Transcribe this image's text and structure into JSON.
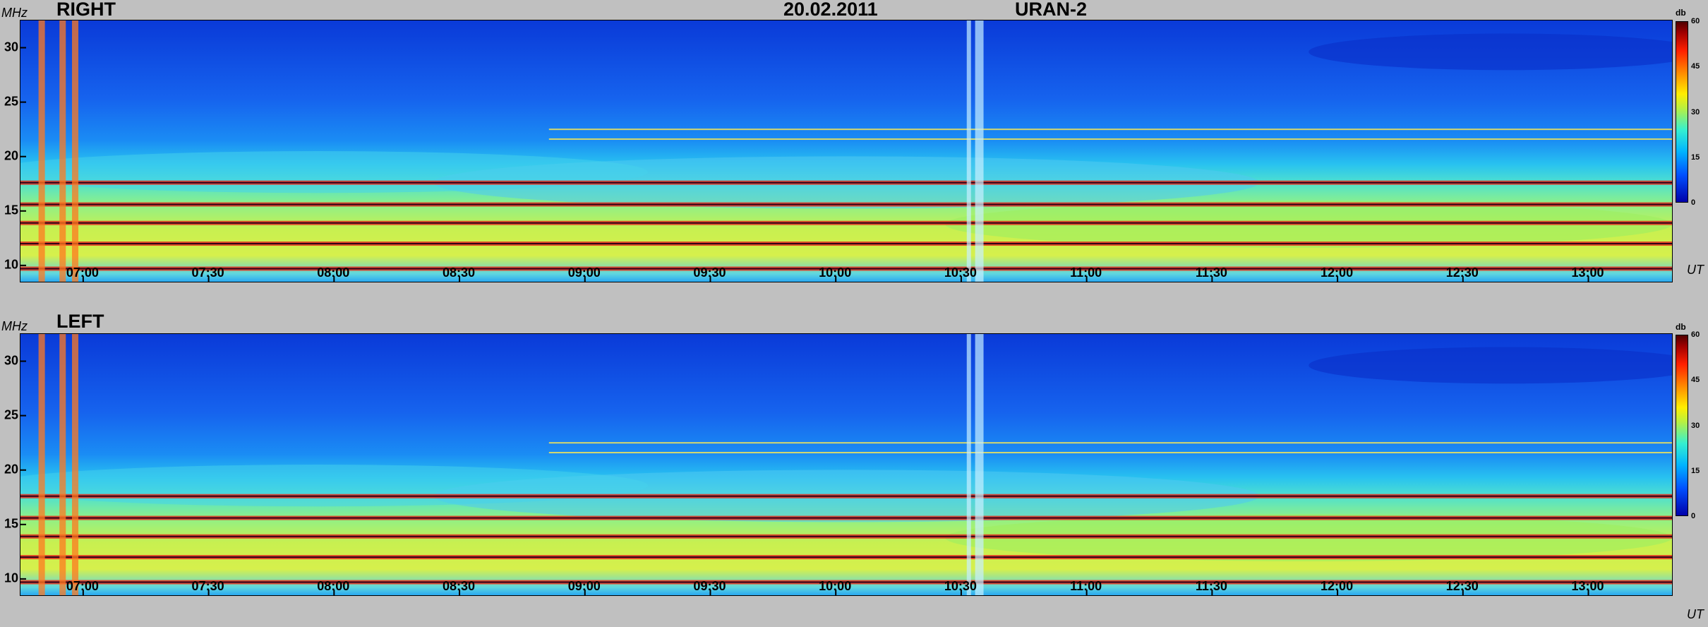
{
  "date": "20.02.2011",
  "instrument": "URAN-2",
  "panels": [
    {
      "label": "RIGHT",
      "y_unit": "MHz",
      "x_unit": "UT",
      "colorbar_unit": "db"
    },
    {
      "label": "LEFT",
      "y_unit": "MHz",
      "x_unit": "UT",
      "colorbar_unit": "db"
    }
  ],
  "chart_data": [
    {
      "type": "heatmap",
      "title": "RIGHT",
      "xlabel": "UT",
      "ylabel": "MHz",
      "x_ticks": [
        "07:00",
        "07:30",
        "08:00",
        "08:30",
        "09:00",
        "09:30",
        "10:00",
        "10:30",
        "11:00",
        "11:30",
        "12:00",
        "12:30",
        "13:00"
      ],
      "y_ticks": [
        10,
        15,
        20,
        25,
        30
      ],
      "ylim": [
        8.5,
        32.5
      ],
      "colorbar": {
        "label": "db",
        "ticks": [
          0,
          15,
          30,
          45,
          60
        ],
        "range": [
          0,
          60
        ]
      },
      "time_range": [
        "06:45",
        "13:20"
      ],
      "features": {
        "interference_bands_mhz": [
          9.7,
          12.0,
          13.9,
          15.6,
          17.6
        ],
        "broadband_bursts_ut": [
          "06:50",
          "06:55",
          "06:58",
          "10:32",
          "10:34",
          "10:35"
        ],
        "narrowband_line_mhz": [
          21.6,
          22.5
        ]
      }
    },
    {
      "type": "heatmap",
      "title": "LEFT",
      "xlabel": "UT",
      "ylabel": "MHz",
      "x_ticks": [
        "07:00",
        "07:30",
        "08:00",
        "08:30",
        "09:00",
        "09:30",
        "10:00",
        "10:30",
        "11:00",
        "11:30",
        "12:00",
        "12:30",
        "13:00"
      ],
      "y_ticks": [
        10,
        15,
        20,
        25,
        30
      ],
      "ylim": [
        8.5,
        32.5
      ],
      "colorbar": {
        "label": "db",
        "ticks": [
          0,
          15,
          30,
          45,
          60
        ],
        "range": [
          0,
          60
        ]
      },
      "time_range": [
        "06:45",
        "13:20"
      ],
      "features": {
        "interference_bands_mhz": [
          9.7,
          12.0,
          13.9,
          15.6,
          17.6
        ],
        "broadband_bursts_ut": [
          "06:50",
          "06:55",
          "06:58",
          "10:32",
          "10:34",
          "10:35"
        ],
        "narrowband_line_mhz": [
          21.6,
          22.5
        ]
      }
    }
  ]
}
